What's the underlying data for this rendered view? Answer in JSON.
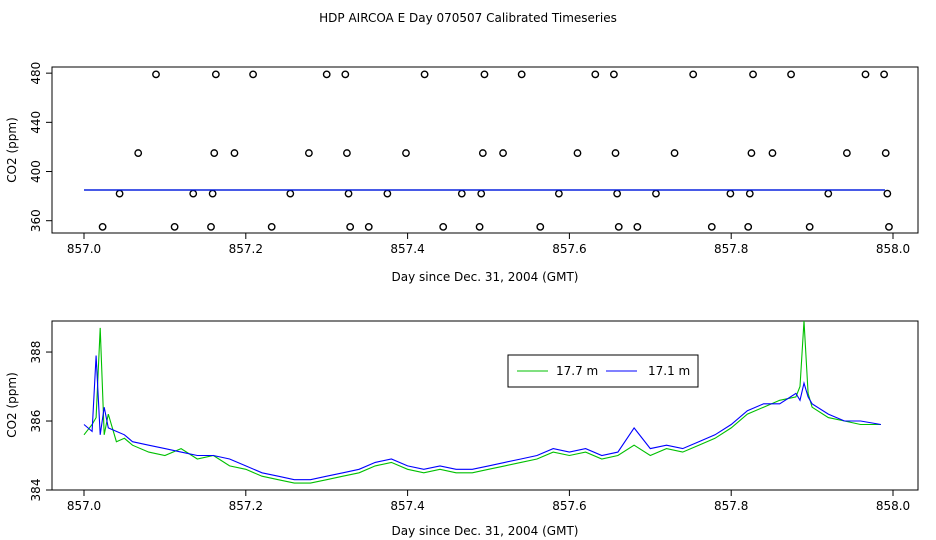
{
  "title": "HDP AIRCOA E  Day 070507  Calibrated Timeseries",
  "colors": {
    "series_1": "#00c000",
    "series_2": "#0000ff",
    "points": "#000000"
  },
  "chart_data": [
    {
      "type": "scatter",
      "xlabel": "Day since Dec. 31, 2004 (GMT)",
      "ylabel": "CO2 (ppm)",
      "xlim": [
        857.0,
        858.0
      ],
      "ylim": [
        350,
        485
      ],
      "xticks": [
        "857.0",
        "857.2",
        "857.4",
        "857.6",
        "857.8",
        "858.0"
      ],
      "yticks": [
        "360",
        "400",
        "440",
        "480"
      ],
      "grid": false,
      "series": [
        {
          "marker": "open-circle",
          "points": [
            [
              857.023,
              355
            ],
            [
              857.044,
              382
            ],
            [
              857.067,
              415
            ],
            [
              857.089,
              479
            ],
            [
              857.112,
              355
            ],
            [
              857.135,
              382
            ],
            [
              857.157,
              355
            ],
            [
              857.159,
              382
            ],
            [
              857.161,
              415
            ],
            [
              857.163,
              479
            ],
            [
              857.186,
              415
            ],
            [
              857.209,
              479
            ],
            [
              857.232,
              355
            ],
            [
              857.255,
              382
            ],
            [
              857.278,
              415
            ],
            [
              857.3,
              479
            ],
            [
              857.323,
              479
            ],
            [
              857.325,
              415
            ],
            [
              857.327,
              382
            ],
            [
              857.329,
              355
            ],
            [
              857.352,
              355
            ],
            [
              857.375,
              382
            ],
            [
              857.398,
              415
            ],
            [
              857.421,
              479
            ],
            [
              857.444,
              355
            ],
            [
              857.467,
              382
            ],
            [
              857.489,
              355
            ],
            [
              857.491,
              382
            ],
            [
              857.493,
              415
            ],
            [
              857.495,
              479
            ],
            [
              857.518,
              415
            ],
            [
              857.541,
              479
            ],
            [
              857.564,
              355
            ],
            [
              857.587,
              382
            ],
            [
              857.61,
              415
            ],
            [
              857.632,
              479
            ],
            [
              857.655,
              479
            ],
            [
              857.657,
              415
            ],
            [
              857.659,
              382
            ],
            [
              857.661,
              355
            ],
            [
              857.684,
              355
            ],
            [
              857.707,
              382
            ],
            [
              857.73,
              415
            ],
            [
              857.753,
              479
            ],
            [
              857.776,
              355
            ],
            [
              857.799,
              382
            ],
            [
              857.821,
              355
            ],
            [
              857.823,
              382
            ],
            [
              857.825,
              415
            ],
            [
              857.827,
              479
            ],
            [
              857.851,
              415
            ],
            [
              857.874,
              479
            ],
            [
              857.897,
              355
            ],
            [
              857.92,
              382
            ],
            [
              857.943,
              415
            ],
            [
              857.966,
              479
            ],
            [
              857.989,
              479
            ],
            [
              857.991,
              415
            ],
            [
              857.993,
              382
            ],
            [
              857.995,
              355
            ]
          ]
        },
        {
          "name": "",
          "color": "#00c000",
          "level": 385
        },
        {
          "name": "",
          "color": "#0000ff",
          "level": 385
        }
      ]
    },
    {
      "type": "line",
      "xlabel": "Day since Dec. 31, 2004 (GMT)",
      "ylabel": "CO2 (ppm)",
      "xlim": [
        857.0,
        858.0
      ],
      "ylim": [
        384.0,
        388.9
      ],
      "xticks": [
        "857.0",
        "857.2",
        "857.4",
        "857.6",
        "857.8",
        "858.0"
      ],
      "yticks": [
        "384",
        "386",
        "388"
      ],
      "grid": false,
      "legend_position": "top-right",
      "series": [
        {
          "name": "17.7 m",
          "color": "#00c000",
          "points": [
            [
              857.0,
              385.6
            ],
            [
              857.01,
              385.9
            ],
            [
              857.015,
              386.1
            ],
            [
              857.02,
              388.7
            ],
            [
              857.025,
              385.6
            ],
            [
              857.03,
              386.2
            ],
            [
              857.04,
              385.4
            ],
            [
              857.05,
              385.5
            ],
            [
              857.06,
              385.3
            ],
            [
              857.08,
              385.1
            ],
            [
              857.1,
              385.0
            ],
            [
              857.12,
              385.2
            ],
            [
              857.14,
              384.9
            ],
            [
              857.16,
              385.0
            ],
            [
              857.18,
              384.7
            ],
            [
              857.2,
              384.6
            ],
            [
              857.22,
              384.4
            ],
            [
              857.24,
              384.3
            ],
            [
              857.26,
              384.2
            ],
            [
              857.28,
              384.2
            ],
            [
              857.3,
              384.3
            ],
            [
              857.32,
              384.4
            ],
            [
              857.34,
              384.5
            ],
            [
              857.36,
              384.7
            ],
            [
              857.38,
              384.8
            ],
            [
              857.4,
              384.6
            ],
            [
              857.42,
              384.5
            ],
            [
              857.44,
              384.6
            ],
            [
              857.46,
              384.5
            ],
            [
              857.48,
              384.5
            ],
            [
              857.5,
              384.6
            ],
            [
              857.52,
              384.7
            ],
            [
              857.54,
              384.8
            ],
            [
              857.56,
              384.9
            ],
            [
              857.58,
              385.1
            ],
            [
              857.6,
              385.0
            ],
            [
              857.62,
              385.1
            ],
            [
              857.64,
              384.9
            ],
            [
              857.66,
              385.0
            ],
            [
              857.68,
              385.3
            ],
            [
              857.7,
              385.0
            ],
            [
              857.72,
              385.2
            ],
            [
              857.74,
              385.1
            ],
            [
              857.76,
              385.3
            ],
            [
              857.78,
              385.5
            ],
            [
              857.8,
              385.8
            ],
            [
              857.82,
              386.2
            ],
            [
              857.84,
              386.4
            ],
            [
              857.86,
              386.6
            ],
            [
              857.88,
              386.7
            ],
            [
              857.885,
              387.0
            ],
            [
              857.89,
              388.9
            ],
            [
              857.895,
              386.8
            ],
            [
              857.9,
              386.4
            ],
            [
              857.92,
              386.1
            ],
            [
              857.94,
              386.0
            ],
            [
              857.96,
              385.9
            ],
            [
              857.985,
              385.9
            ]
          ]
        },
        {
          "name": "17.1 m",
          "color": "#0000ff",
          "points": [
            [
              857.0,
              385.9
            ],
            [
              857.01,
              385.7
            ],
            [
              857.015,
              387.9
            ],
            [
              857.02,
              385.6
            ],
            [
              857.025,
              386.4
            ],
            [
              857.03,
              385.8
            ],
            [
              857.04,
              385.7
            ],
            [
              857.05,
              385.6
            ],
            [
              857.06,
              385.4
            ],
            [
              857.08,
              385.3
            ],
            [
              857.1,
              385.2
            ],
            [
              857.12,
              385.1
            ],
            [
              857.14,
              385.0
            ],
            [
              857.16,
              385.0
            ],
            [
              857.18,
              384.9
            ],
            [
              857.2,
              384.7
            ],
            [
              857.22,
              384.5
            ],
            [
              857.24,
              384.4
            ],
            [
              857.26,
              384.3
            ],
            [
              857.28,
              384.3
            ],
            [
              857.3,
              384.4
            ],
            [
              857.32,
              384.5
            ],
            [
              857.34,
              384.6
            ],
            [
              857.36,
              384.8
            ],
            [
              857.38,
              384.9
            ],
            [
              857.4,
              384.7
            ],
            [
              857.42,
              384.6
            ],
            [
              857.44,
              384.7
            ],
            [
              857.46,
              384.6
            ],
            [
              857.48,
              384.6
            ],
            [
              857.5,
              384.7
            ],
            [
              857.52,
              384.8
            ],
            [
              857.54,
              384.9
            ],
            [
              857.56,
              385.0
            ],
            [
              857.58,
              385.2
            ],
            [
              857.6,
              385.1
            ],
            [
              857.62,
              385.2
            ],
            [
              857.64,
              385.0
            ],
            [
              857.66,
              385.1
            ],
            [
              857.68,
              385.8
            ],
            [
              857.7,
              385.2
            ],
            [
              857.72,
              385.3
            ],
            [
              857.74,
              385.2
            ],
            [
              857.76,
              385.4
            ],
            [
              857.78,
              385.6
            ],
            [
              857.8,
              385.9
            ],
            [
              857.82,
              386.3
            ],
            [
              857.84,
              386.5
            ],
            [
              857.86,
              386.5
            ],
            [
              857.88,
              386.8
            ],
            [
              857.885,
              386.6
            ],
            [
              857.89,
              387.1
            ],
            [
              857.895,
              386.7
            ],
            [
              857.9,
              386.5
            ],
            [
              857.92,
              386.2
            ],
            [
              857.94,
              386.0
            ],
            [
              857.96,
              386.0
            ],
            [
              857.985,
              385.9
            ]
          ]
        }
      ]
    }
  ]
}
